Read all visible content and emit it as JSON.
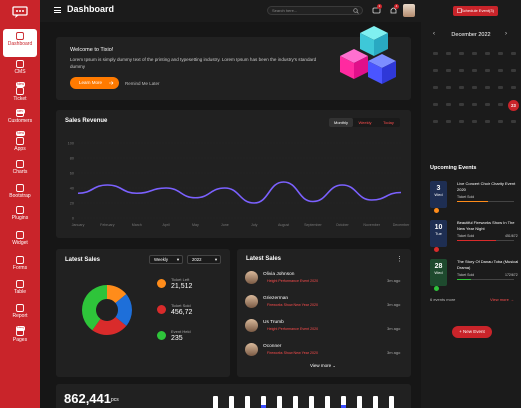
{
  "header": {
    "title": "Dashboard",
    "search_placeholder": "Search here...",
    "notif_count": "4",
    "msg_count": "3"
  },
  "sidebar": {
    "items": [
      {
        "label": "Dashboard",
        "badge": ""
      },
      {
        "label": "CMS",
        "badge": "New"
      },
      {
        "label": "Ticket",
        "badge": "New"
      },
      {
        "label": "Customers",
        "badge": "New"
      },
      {
        "label": "Apps",
        "badge": ""
      },
      {
        "label": "Charts",
        "badge": ""
      },
      {
        "label": "Bootstrap",
        "badge": ""
      },
      {
        "label": "Plugins",
        "badge": ""
      },
      {
        "label": "Widget",
        "badge": ""
      },
      {
        "label": "Forms",
        "badge": ""
      },
      {
        "label": "Table",
        "badge": ""
      },
      {
        "label": "Report",
        "badge": "New"
      },
      {
        "label": "Pages",
        "badge": ""
      }
    ]
  },
  "welcome": {
    "heading": "Welcome to Tixio!",
    "text": "Lorem Ipsum is simply dummy text of the printing and typesetting industry. Lorem Ipsum has been the industry's standard dummy",
    "learn_more": "Learn More",
    "remind": "Remind Me Later"
  },
  "sales_revenue": {
    "title": "Sales Revenue",
    "tabs": [
      "Monthly",
      "Weekly",
      "Today"
    ]
  },
  "chart_data": {
    "type": "line",
    "title": "Sales Revenue",
    "categories": [
      "January",
      "February",
      "March",
      "April",
      "May",
      "June",
      "July",
      "August",
      "September",
      "October",
      "November",
      "December"
    ],
    "series": [
      {
        "values": [
          33,
          44,
          33,
          40,
          27,
          40,
          20,
          48,
          22,
          44,
          24,
          34
        ]
      }
    ],
    "yticks": [
      "0",
      "20",
      "40",
      "60",
      "80",
      "100"
    ],
    "ylim": [
      0,
      100
    ],
    "color": "#7b61ff"
  },
  "latest_sales": {
    "title": "Latest Sales",
    "period": "Weekly",
    "year": "2022",
    "legend": [
      {
        "label": "Ticket Left",
        "value": "21,512",
        "color": "#ff8c1a"
      },
      {
        "label": "Ticket Sold",
        "value": "456,72",
        "color": "#d92b2b"
      },
      {
        "label": "Event Held",
        "value": "235",
        "color": "#2ec43a"
      }
    ],
    "donut": [
      {
        "color": "#ff8c1a",
        "value": 14
      },
      {
        "color": "#1e6fd9",
        "value": 22
      },
      {
        "color": "#d92b2b",
        "value": 24
      },
      {
        "color": "#2ec43a",
        "value": 40
      }
    ]
  },
  "latest_sales_list": {
    "title": "Latest Sales",
    "view_more": "View more",
    "rows": [
      {
        "name": "Olivia Johnson",
        "sub": "Height Performance Event 2020",
        "time": "3m ago"
      },
      {
        "name": "Griezerman",
        "sub": "Fireworks Show New Year 2020",
        "time": "3m ago"
      },
      {
        "name": "Us Trumb",
        "sub": "Height Performance Event 2020",
        "time": "3m ago"
      },
      {
        "name": "Oconner",
        "sub": "Fireworks Show New Year 2020",
        "time": "3m ago"
      }
    ]
  },
  "footer_card": {
    "value": "862,441",
    "unit": "pcs"
  },
  "calendar": {
    "schedule_btn": "Schedule Event(3)",
    "month": "December 2022",
    "selected": "23",
    "rows": [
      [
        "",
        "",
        "",
        "",
        "",
        "",
        ""
      ],
      [
        "",
        "",
        "",
        "",
        "",
        "",
        ""
      ],
      [
        "",
        "",
        "",
        "",
        "",
        "",
        ""
      ],
      [
        "",
        "",
        "",
        "",
        "",
        "",
        "23"
      ],
      [
        "",
        "",
        "",
        "",
        "",
        "",
        ""
      ]
    ]
  },
  "upcoming": {
    "title": "Upcoming Events",
    "more": "6 events more",
    "view_more": "View more",
    "events": [
      {
        "day": "3",
        "dow": "Wed",
        "title": "Live Concert Choir Charity Event 2020",
        "sold": "Ticket Sold",
        "count": "",
        "color": "#ff8c1a",
        "fill": 0.55,
        "bg": "#1e2e52"
      },
      {
        "day": "10",
        "dow": "Tue",
        "title": "Beautiful Fireworks Show In The New Year Night",
        "sold": "Ticket Sold",
        "count": "451/672",
        "color": "#d92b2b",
        "fill": 0.68,
        "bg": "#1e2e52"
      },
      {
        "day": "28",
        "dow": "Wed",
        "title": "The Story Of Danau Toba (Musical Drama)",
        "sold": "Ticket Sold",
        "count": "172/672",
        "color": "#2ec43a",
        "fill": 0.25,
        "bg": "#1e4a2e"
      }
    ],
    "new_event": "+ New Event"
  }
}
